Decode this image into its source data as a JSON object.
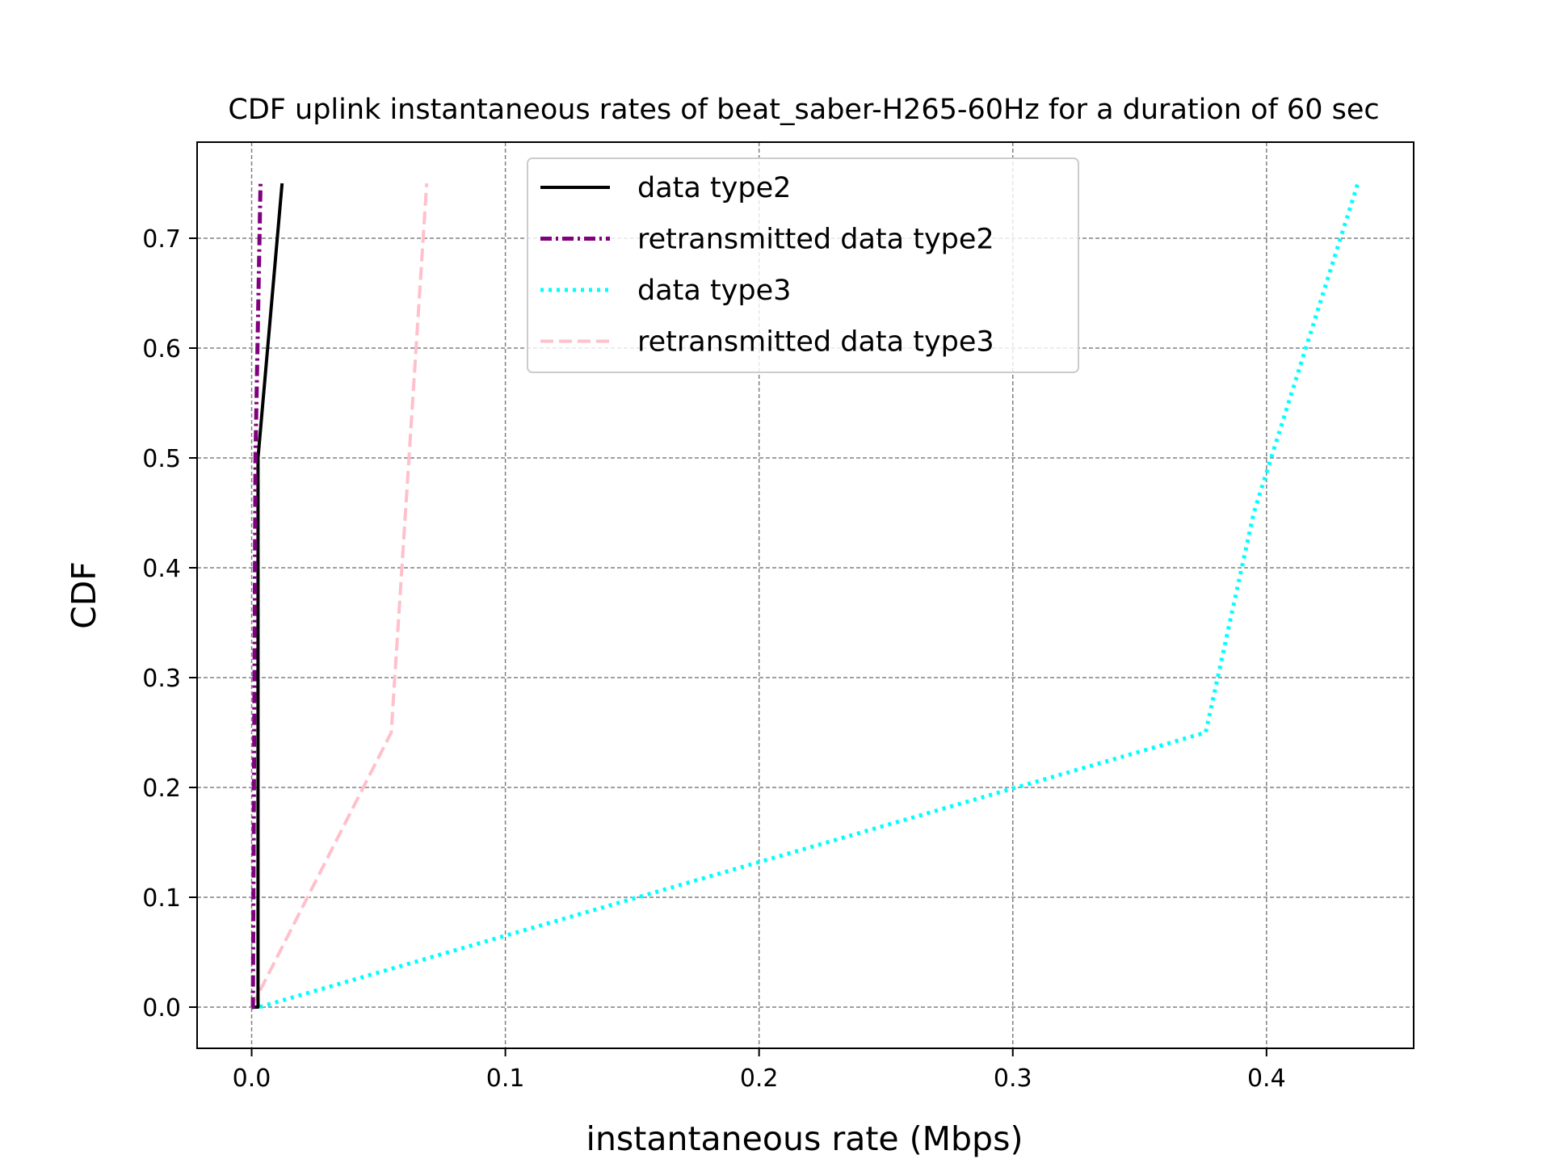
{
  "chart_data": {
    "type": "line",
    "title": "CDF uplink instantaneous rates of beat_saber-H265-60Hz for a duration of 60 sec",
    "xlabel": "instantaneous rate (Mbps)",
    "ylabel": "CDF",
    "xlim": [
      -0.0215,
      0.458
    ],
    "ylim": [
      -0.0375,
      0.7875
    ],
    "xticks": [
      0.0,
      0.1,
      0.2,
      0.3,
      0.4
    ],
    "xtick_labels": [
      "0.0",
      "0.1",
      "0.2",
      "0.3",
      "0.4"
    ],
    "yticks": [
      0.0,
      0.1,
      0.2,
      0.3,
      0.4,
      0.5,
      0.6,
      0.7
    ],
    "ytick_labels": [
      "0.0",
      "0.1",
      "0.2",
      "0.3",
      "0.4",
      "0.5",
      "0.6",
      "0.7"
    ],
    "grid": true,
    "legend_position": "top-center",
    "series": [
      {
        "name": "data type2",
        "color": "#000000",
        "style": "solid",
        "x": [
          0.0,
          0.0025,
          0.0025,
          0.0025,
          0.012
        ],
        "y": [
          0.0,
          0.0,
          0.25,
          0.5,
          0.75
        ]
      },
      {
        "name": "retransmitted data type2",
        "color": "#800080",
        "style": "dashdot",
        "x": [
          0.0,
          0.0005,
          0.001,
          0.0015,
          0.0035
        ],
        "y": [
          0.0,
          0.0,
          0.25,
          0.5,
          0.75
        ]
      },
      {
        "name": "data type3",
        "color": "#00ffff",
        "style": "dotted",
        "x": [
          0.0,
          0.003,
          0.376,
          0.395,
          0.436
        ],
        "y": [
          0.0,
          0.0,
          0.25,
          0.45,
          0.75
        ]
      },
      {
        "name": "retransmitted data type3",
        "color": "#ffc0cb",
        "style": "dashed",
        "x": [
          0.0,
          0.0,
          0.055,
          0.062,
          0.069
        ],
        "y": [
          0.0,
          0.0,
          0.25,
          0.5,
          0.75
        ]
      }
    ]
  }
}
